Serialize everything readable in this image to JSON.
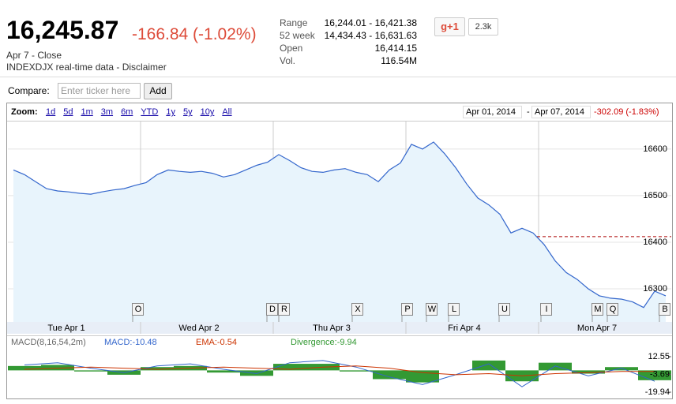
{
  "quote": {
    "price": "16,245.87",
    "change": "-166.84 (-1.02%)",
    "date": "Apr 7 - Close",
    "source": "INDEXDJX real-time data - Disclaimer"
  },
  "stats": [
    [
      "Range",
      "16,244.01 - 16,421.38"
    ],
    [
      "52 week",
      "14,434.43 - 16,631.63"
    ],
    [
      "Open",
      "16,414.15"
    ],
    [
      "Vol.",
      "116.54M"
    ]
  ],
  "social": {
    "button": "g+1",
    "count": "2.3k"
  },
  "compare": {
    "label": "Compare:",
    "placeholder": "Enter ticker here",
    "button": "Add"
  },
  "zoom": {
    "label": "Zoom:",
    "options": [
      "1d",
      "5d",
      "1m",
      "3m",
      "6m",
      "YTD",
      "1y",
      "5y",
      "10y",
      "All"
    ]
  },
  "range": {
    "start": "Apr 01, 2014",
    "end": "Apr 07, 2014",
    "change": "-302.09 (-1.83%)"
  },
  "chart_data": [
    {
      "type": "line",
      "color": "#3366cc",
      "day_labels": [
        "Tue Apr 1",
        "Wed Apr 2",
        "Thu Apr 3",
        "Fri Apr 4",
        "Mon Apr 7"
      ],
      "values": [
        16555,
        16545,
        16530,
        16515,
        16510,
        16508,
        16505,
        16503,
        16508,
        16512,
        16515,
        16522,
        16528,
        16545,
        16555,
        16552,
        16550,
        16552,
        16548,
        16540,
        16545,
        16555,
        16565,
        16572,
        16588,
        16575,
        16560,
        16552,
        16550,
        16555,
        16558,
        16550,
        16545,
        16530,
        16555,
        16570,
        16610,
        16600,
        16615,
        16590,
        16560,
        16525,
        16495,
        16480,
        16460,
        16420,
        16430,
        16420,
        16395,
        16360,
        16335,
        16320,
        16300,
        16285,
        16280,
        16278,
        16272,
        16260,
        16295,
        16285
      ],
      "reference_line": 16412,
      "ylim": [
        16229,
        16659
      ],
      "yticks": [
        16300,
        16400,
        16500,
        16600
      ],
      "flags": [
        "O",
        "D",
        "R",
        "X",
        "P",
        "W",
        "L",
        "U",
        "I",
        "M",
        "Q",
        "B"
      ]
    },
    {
      "type": "macd",
      "title": "MACD(8,16,54,2m)",
      "series": [
        {
          "name": "MACD:-10.48",
          "color": "#3366cc",
          "values": [
            5,
            7,
            2,
            -2,
            4,
            6,
            1,
            -3,
            7,
            9,
            3,
            -6,
            -13,
            -4,
            6,
            -15,
            4,
            -5,
            2,
            -10
          ]
        },
        {
          "name": "EMA:-0.54",
          "color": "#cc3300",
          "values": [
            1,
            2,
            3,
            2,
            1,
            2,
            3,
            2,
            1,
            3,
            4,
            2,
            -2,
            -4,
            -3,
            -5,
            -3,
            -2,
            -1,
            -1
          ]
        },
        {
          "name": "Divergence:-9.94",
          "color": "#339933",
          "values": [
            4,
            5,
            -1,
            -4,
            3,
            4,
            -2,
            -5,
            6,
            6,
            -1,
            -8,
            -11,
            0,
            9,
            -10,
            7,
            -3,
            3,
            -9
          ]
        }
      ],
      "ylim": [
        -25.7,
        21.2
      ],
      "yticks": [
        12.55,
        -3.69,
        -19.94
      ]
    }
  ]
}
